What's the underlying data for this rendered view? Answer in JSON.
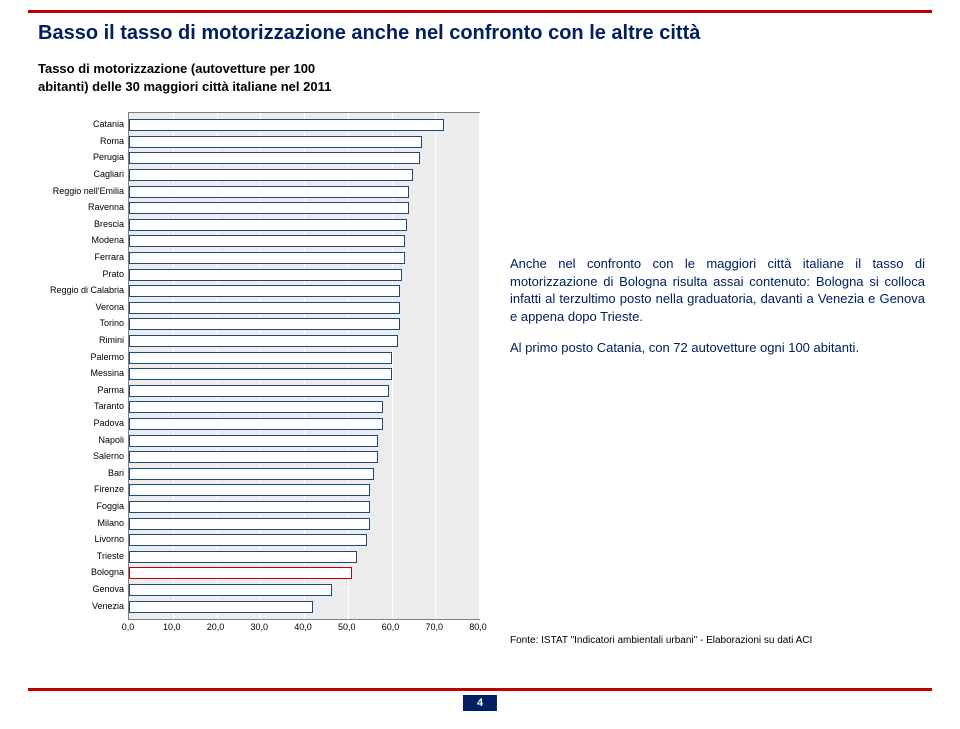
{
  "title": "Basso il tasso di motorizzazione anche nel confronto con le altre città",
  "subtitle_line1": "Tasso di motorizzazione (autovetture per 100",
  "subtitle_line2": "abitanti) delle 30 maggiori città italiane nel 2011",
  "chart": {
    "type": "bar-horizontal",
    "xlim": [
      0,
      80
    ],
    "xtick_step": 10,
    "xticks": [
      "0,0",
      "10,0",
      "20,0",
      "30,0",
      "40,0",
      "50,0",
      "60,0",
      "70,0",
      "80,0"
    ],
    "plot_bg": "#ececec",
    "plot_border": "#7f7f7f",
    "grid_color": "#ffffff",
    "bar_border_blue": "#1f497d",
    "bar_border_red": "#c00000",
    "bar_fill": "#ffffff",
    "label_fontsize": 9,
    "rows": [
      {
        "label": "Catania",
        "value": 72.0,
        "highlight": false
      },
      {
        "label": "Roma",
        "value": 67.0,
        "highlight": false
      },
      {
        "label": "Perugia",
        "value": 66.5,
        "highlight": false
      },
      {
        "label": "Cagliari",
        "value": 65.0,
        "highlight": false
      },
      {
        "label": "Reggio nell'Emilia",
        "value": 64.0,
        "highlight": false
      },
      {
        "label": "Ravenna",
        "value": 64.0,
        "highlight": false
      },
      {
        "label": "Brescia",
        "value": 63.5,
        "highlight": false
      },
      {
        "label": "Modena",
        "value": 63.0,
        "highlight": false
      },
      {
        "label": "Ferrara",
        "value": 63.0,
        "highlight": false
      },
      {
        "label": "Prato",
        "value": 62.5,
        "highlight": false
      },
      {
        "label": "Reggio di Calabria",
        "value": 62.0,
        "highlight": false
      },
      {
        "label": "Verona",
        "value": 62.0,
        "highlight": false
      },
      {
        "label": "Torino",
        "value": 62.0,
        "highlight": false
      },
      {
        "label": "Rimini",
        "value": 61.5,
        "highlight": false
      },
      {
        "label": "Palermo",
        "value": 60.0,
        "highlight": false
      },
      {
        "label": "Messina",
        "value": 60.0,
        "highlight": false
      },
      {
        "label": "Parma",
        "value": 59.5,
        "highlight": false
      },
      {
        "label": "Taranto",
        "value": 58.0,
        "highlight": false
      },
      {
        "label": "Padova",
        "value": 58.0,
        "highlight": false
      },
      {
        "label": "Napoli",
        "value": 57.0,
        "highlight": false
      },
      {
        "label": "Salerno",
        "value": 57.0,
        "highlight": false
      },
      {
        "label": "Bari",
        "value": 56.0,
        "highlight": false
      },
      {
        "label": "Firenze",
        "value": 55.0,
        "highlight": false
      },
      {
        "label": "Foggia",
        "value": 55.0,
        "highlight": false
      },
      {
        "label": "Milano",
        "value": 55.0,
        "highlight": false
      },
      {
        "label": "Livorno",
        "value": 54.5,
        "highlight": false
      },
      {
        "label": "Trieste",
        "value": 52.0,
        "highlight": false
      },
      {
        "label": "Bologna",
        "value": 51.0,
        "highlight": true
      },
      {
        "label": "Genova",
        "value": 46.5,
        "highlight": false
      },
      {
        "label": "Venezia",
        "value": 42.0,
        "highlight": false
      }
    ]
  },
  "body": {
    "p1": "Anche nel confronto con le maggiori città italiane il tasso di motorizzazione di Bologna risulta assai contenuto: Bologna si colloca infatti al terzultimo posto nella graduatoria, davanti a Venezia e Genova e appena dopo Trieste.",
    "p2": "Al primo posto Catania, con 72 autovetture ogni 100 abitanti."
  },
  "source": "Fonte: ISTAT \"Indicatori ambientali urbani\" - Elaborazioni su dati ACI",
  "page_number": "4",
  "colors": {
    "accent_red": "#c00000",
    "accent_navy": "#002060"
  }
}
